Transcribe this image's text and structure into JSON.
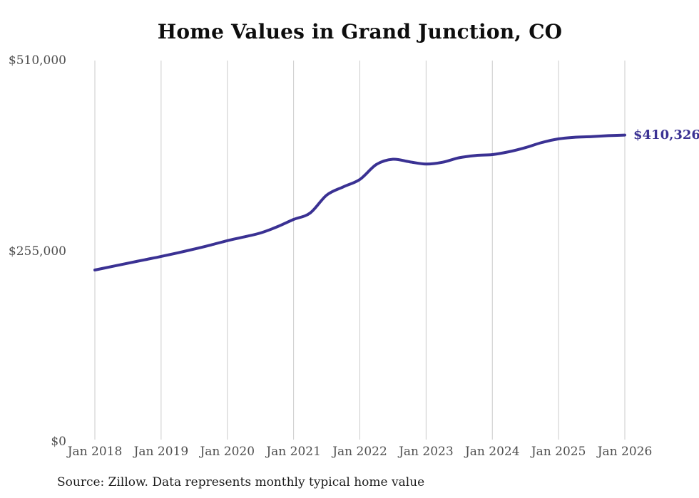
{
  "chart_data": {
    "type": "line",
    "title": "Home Values in Grand Junction, CO",
    "source": "Source: Zillow. Data represents monthly typical home value",
    "end_label": "$410,326",
    "end_value": 410326,
    "xlabel": "",
    "ylabel": "",
    "xlim": [
      2018,
      2026
    ],
    "ylim": [
      0,
      510000
    ],
    "grid": "vertical-only",
    "legend_position": "none",
    "colors": {
      "line": "#3a3193",
      "grid": "#cbcbcb",
      "axis_text": "#4f4f4f",
      "title_text": "#0d0d0d",
      "end_label_text": "#3a3193",
      "source_text": "#1c1c1c",
      "background": "#ffffff"
    },
    "y_ticks": [
      {
        "label": "$510,000",
        "value": 510000
      },
      {
        "label": "$255,000",
        "value": 255000
      },
      {
        "label": "$0",
        "value": 0
      }
    ],
    "x_ticks": [
      {
        "label": "Jan 2018",
        "value": 2018
      },
      {
        "label": "Jan 2019",
        "value": 2019
      },
      {
        "label": "Jan 2020",
        "value": 2020
      },
      {
        "label": "Jan 2021",
        "value": 2021
      },
      {
        "label": "Jan 2022",
        "value": 2022
      },
      {
        "label": "Jan 2023",
        "value": 2023
      },
      {
        "label": "Jan 2024",
        "value": 2024
      },
      {
        "label": "Jan 2025",
        "value": 2025
      },
      {
        "label": "Jan 2026",
        "value": 2026
      }
    ],
    "series": [
      {
        "name": "Monthly typical home value",
        "points": [
          {
            "x": 2018.0,
            "y": 229700
          },
          {
            "x": 2018.25,
            "y": 234300
          },
          {
            "x": 2018.5,
            "y": 238900
          },
          {
            "x": 2018.75,
            "y": 243400
          },
          {
            "x": 2019.0,
            "y": 247900
          },
          {
            "x": 2019.25,
            "y": 252700
          },
          {
            "x": 2019.5,
            "y": 257800
          },
          {
            "x": 2019.75,
            "y": 263200
          },
          {
            "x": 2020.0,
            "y": 269000
          },
          {
            "x": 2020.25,
            "y": 274000
          },
          {
            "x": 2020.5,
            "y": 279300
          },
          {
            "x": 2020.75,
            "y": 287500
          },
          {
            "x": 2021.0,
            "y": 297400
          },
          {
            "x": 2021.25,
            "y": 306000
          },
          {
            "x": 2021.5,
            "y": 330000
          },
          {
            "x": 2021.75,
            "y": 341000
          },
          {
            "x": 2022.0,
            "y": 350900
          },
          {
            "x": 2022.25,
            "y": 371000
          },
          {
            "x": 2022.5,
            "y": 378000
          },
          {
            "x": 2022.75,
            "y": 374500
          },
          {
            "x": 2023.0,
            "y": 371500
          },
          {
            "x": 2023.25,
            "y": 374000
          },
          {
            "x": 2023.5,
            "y": 380000
          },
          {
            "x": 2023.75,
            "y": 383000
          },
          {
            "x": 2024.0,
            "y": 384200
          },
          {
            "x": 2024.25,
            "y": 388000
          },
          {
            "x": 2024.5,
            "y": 393500
          },
          {
            "x": 2024.75,
            "y": 400400
          },
          {
            "x": 2025.0,
            "y": 405200
          },
          {
            "x": 2025.25,
            "y": 407400
          },
          {
            "x": 2025.5,
            "y": 408200
          },
          {
            "x": 2025.75,
            "y": 409500
          },
          {
            "x": 2026.0,
            "y": 410326
          }
        ]
      }
    ]
  }
}
